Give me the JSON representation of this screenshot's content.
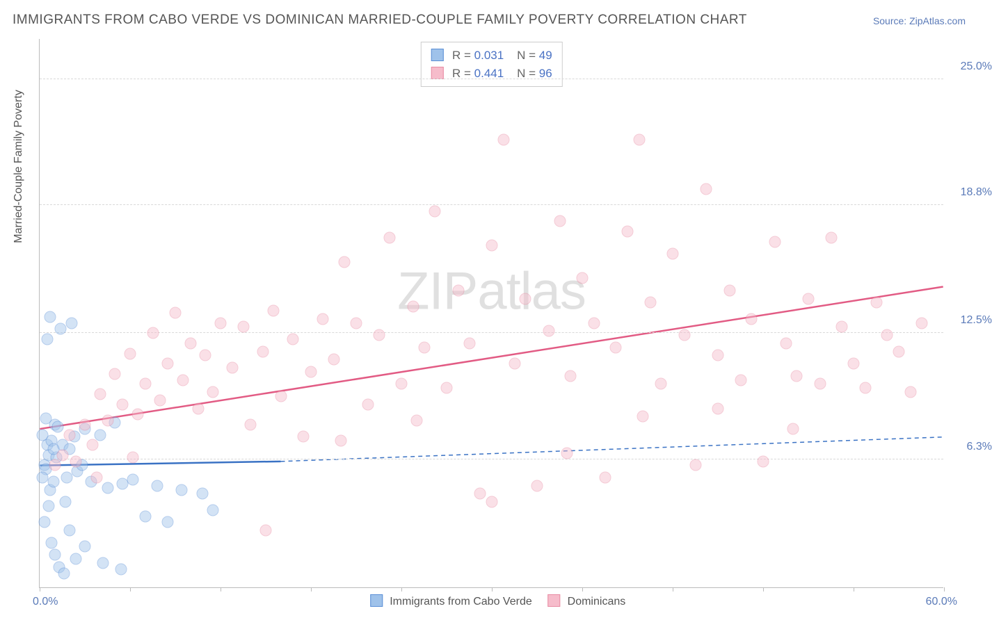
{
  "title": "IMMIGRANTS FROM CABO VERDE VS DOMINICAN MARRIED-COUPLE FAMILY POVERTY CORRELATION CHART",
  "source": "Source: ZipAtlas.com",
  "watermark_a": "ZIP",
  "watermark_b": "atlas",
  "y_axis_title": "Married-Couple Family Poverty",
  "x_min_label": "0.0%",
  "x_max_label": "60.0%",
  "chart": {
    "type": "scatter",
    "xlim": [
      0,
      60
    ],
    "ylim": [
      0,
      27
    ],
    "x_ticks": [
      0,
      6,
      12,
      18,
      24,
      30,
      36,
      42,
      48,
      54,
      60
    ],
    "y_grid": [
      {
        "value": 6.3,
        "label": "6.3%"
      },
      {
        "value": 12.5,
        "label": "12.5%"
      },
      {
        "value": 18.8,
        "label": "18.8%"
      },
      {
        "value": 25.0,
        "label": "25.0%"
      }
    ],
    "background_color": "#ffffff",
    "grid_color": "#d8d8d8",
    "axis_color": "#bbbbbb",
    "marker_radius": 8.5,
    "marker_opacity": 0.45,
    "trend_line_width": 2.5
  },
  "series": [
    {
      "name": "Immigrants from Cabo Verde",
      "fill_color": "#9fc2ea",
      "stroke_color": "#5a8fd6",
      "line_color": "#3a72c4",
      "R": "0.031",
      "N": "49",
      "trend": {
        "x1": 0,
        "y1": 6.0,
        "x2": 16,
        "y2": 6.2,
        "ext_x2": 60,
        "ext_y2": 7.4
      },
      "points": [
        [
          0.3,
          6.0
        ],
        [
          0.5,
          7.0
        ],
        [
          0.4,
          5.8
        ],
        [
          0.6,
          6.5
        ],
        [
          0.8,
          7.2
        ],
        [
          0.2,
          7.5
        ],
        [
          1.0,
          8.0
        ],
        [
          0.7,
          4.8
        ],
        [
          1.2,
          7.9
        ],
        [
          0.9,
          5.2
        ],
        [
          1.5,
          7.0
        ],
        [
          1.1,
          6.4
        ],
        [
          1.8,
          5.4
        ],
        [
          0.4,
          8.3
        ],
        [
          2.0,
          6.8
        ],
        [
          0.6,
          4.0
        ],
        [
          2.3,
          7.4
        ],
        [
          0.3,
          3.2
        ],
        [
          2.5,
          5.7
        ],
        [
          0.8,
          2.2
        ],
        [
          3.0,
          7.8
        ],
        [
          1.0,
          1.6
        ],
        [
          3.4,
          5.2
        ],
        [
          1.3,
          1.0
        ],
        [
          4.0,
          7.5
        ],
        [
          1.6,
          0.7
        ],
        [
          4.5,
          4.9
        ],
        [
          2.0,
          2.8
        ],
        [
          5.0,
          8.1
        ],
        [
          2.4,
          1.4
        ],
        [
          5.5,
          5.1
        ],
        [
          3.0,
          2.0
        ],
        [
          0.5,
          12.2
        ],
        [
          0.7,
          13.3
        ],
        [
          1.4,
          12.7
        ],
        [
          2.1,
          13.0
        ],
        [
          6.2,
          5.3
        ],
        [
          7.0,
          3.5
        ],
        [
          7.8,
          5.0
        ],
        [
          8.5,
          3.2
        ],
        [
          9.4,
          4.8
        ],
        [
          4.2,
          1.2
        ],
        [
          5.4,
          0.9
        ],
        [
          10.8,
          4.6
        ],
        [
          11.5,
          3.8
        ],
        [
          0.2,
          5.4
        ],
        [
          0.9,
          6.8
        ],
        [
          1.7,
          4.2
        ],
        [
          2.8,
          6.0
        ]
      ]
    },
    {
      "name": "Dominicans",
      "fill_color": "#f6bccb",
      "stroke_color": "#e88ba3",
      "line_color": "#e25b84",
      "R": "0.441",
      "N": "96",
      "trend": {
        "x1": 0,
        "y1": 7.8,
        "x2": 60,
        "y2": 14.8,
        "ext_x2": 60,
        "ext_y2": 14.8
      },
      "points": [
        [
          1.0,
          6.0
        ],
        [
          1.5,
          6.5
        ],
        [
          2.0,
          7.5
        ],
        [
          2.4,
          6.2
        ],
        [
          3.0,
          8.0
        ],
        [
          3.5,
          7.0
        ],
        [
          4.0,
          9.5
        ],
        [
          4.5,
          8.2
        ],
        [
          5.0,
          10.5
        ],
        [
          5.5,
          9.0
        ],
        [
          6.0,
          11.5
        ],
        [
          6.5,
          8.5
        ],
        [
          7.0,
          10.0
        ],
        [
          7.5,
          12.5
        ],
        [
          8.0,
          9.2
        ],
        [
          8.5,
          11.0
        ],
        [
          9.0,
          13.5
        ],
        [
          9.5,
          10.2
        ],
        [
          10.0,
          12.0
        ],
        [
          10.5,
          8.8
        ],
        [
          11.0,
          11.4
        ],
        [
          11.5,
          9.6
        ],
        [
          12.0,
          13.0
        ],
        [
          12.8,
          10.8
        ],
        [
          13.5,
          12.8
        ],
        [
          14.0,
          8.0
        ],
        [
          14.8,
          11.6
        ],
        [
          15.5,
          13.6
        ],
        [
          16.0,
          9.4
        ],
        [
          16.8,
          12.2
        ],
        [
          17.5,
          7.4
        ],
        [
          18.0,
          10.6
        ],
        [
          18.8,
          13.2
        ],
        [
          19.5,
          11.2
        ],
        [
          20.2,
          16.0
        ],
        [
          21.0,
          13.0
        ],
        [
          21.8,
          9.0
        ],
        [
          22.5,
          12.4
        ],
        [
          23.2,
          17.2
        ],
        [
          24.0,
          10.0
        ],
        [
          24.8,
          13.8
        ],
        [
          25.5,
          11.8
        ],
        [
          26.2,
          18.5
        ],
        [
          27.0,
          9.8
        ],
        [
          27.8,
          14.6
        ],
        [
          28.5,
          12.0
        ],
        [
          29.2,
          4.6
        ],
        [
          30.0,
          16.8
        ],
        [
          30.8,
          22.0
        ],
        [
          31.5,
          11.0
        ],
        [
          32.2,
          14.2
        ],
        [
          33.0,
          5.0
        ],
        [
          33.8,
          12.6
        ],
        [
          34.5,
          18.0
        ],
        [
          35.2,
          10.4
        ],
        [
          36.0,
          15.2
        ],
        [
          36.8,
          13.0
        ],
        [
          37.5,
          5.4
        ],
        [
          38.2,
          11.8
        ],
        [
          39.0,
          17.5
        ],
        [
          39.8,
          22.0
        ],
        [
          40.5,
          14.0
        ],
        [
          41.2,
          10.0
        ],
        [
          42.0,
          16.4
        ],
        [
          42.8,
          12.4
        ],
        [
          43.5,
          6.0
        ],
        [
          44.2,
          19.6
        ],
        [
          45.0,
          11.4
        ],
        [
          45.8,
          14.6
        ],
        [
          46.5,
          10.2
        ],
        [
          47.2,
          13.2
        ],
        [
          48.0,
          6.2
        ],
        [
          48.8,
          17.0
        ],
        [
          49.5,
          12.0
        ],
        [
          50.2,
          10.4
        ],
        [
          51.0,
          14.2
        ],
        [
          51.8,
          10.0
        ],
        [
          52.5,
          17.2
        ],
        [
          53.2,
          12.8
        ],
        [
          54.0,
          11.0
        ],
        [
          54.8,
          9.8
        ],
        [
          55.5,
          14.0
        ],
        [
          56.2,
          12.4
        ],
        [
          57.0,
          11.6
        ],
        [
          57.8,
          9.6
        ],
        [
          58.5,
          13.0
        ],
        [
          15.0,
          2.8
        ],
        [
          20.0,
          7.2
        ],
        [
          25.0,
          8.2
        ],
        [
          30.0,
          4.2
        ],
        [
          35.0,
          6.6
        ],
        [
          40.0,
          8.4
        ],
        [
          45.0,
          8.8
        ],
        [
          50.0,
          7.8
        ],
        [
          3.8,
          5.4
        ],
        [
          6.2,
          6.4
        ]
      ]
    }
  ],
  "bottom_legend": {
    "series_a": "Immigrants from Cabo Verde",
    "series_b": "Dominicans"
  },
  "stats_legend": {
    "r_label": "R =",
    "n_label": "N ="
  }
}
